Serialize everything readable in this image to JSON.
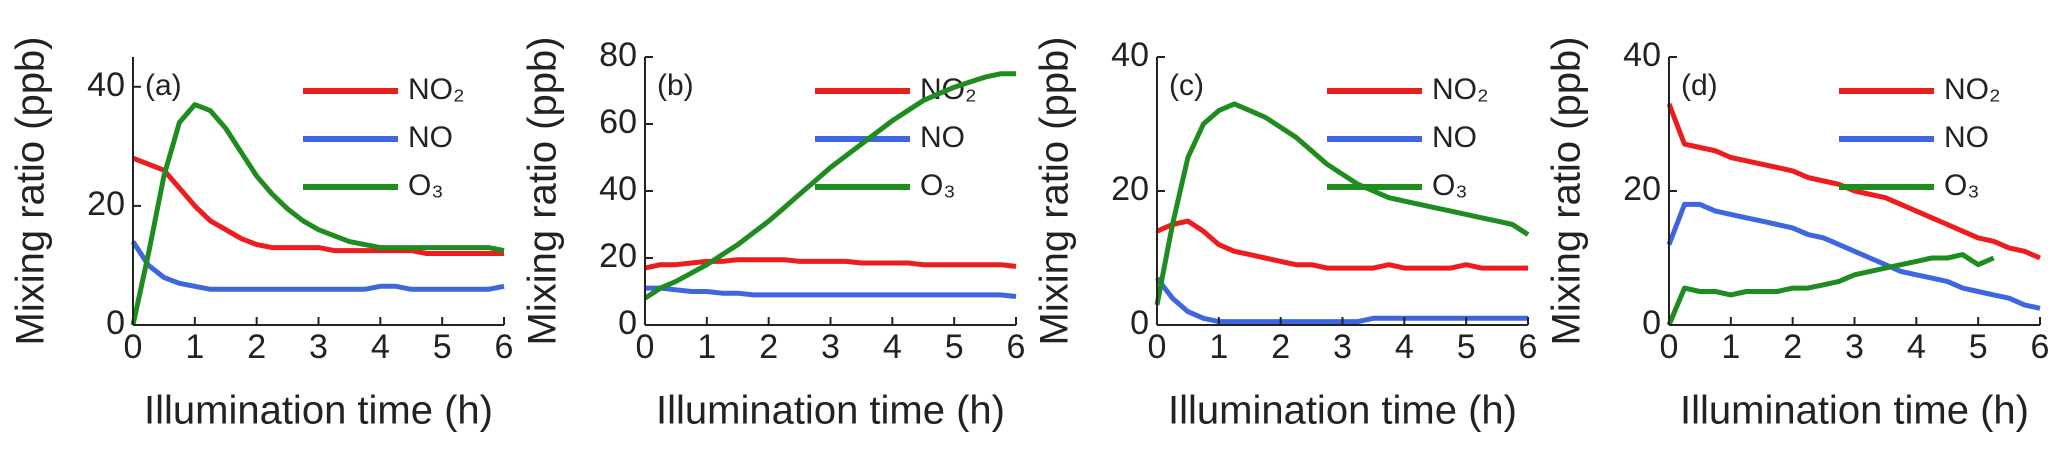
{
  "chart_data": [
    {
      "type": "line",
      "label": "(a)",
      "xlabel": "Illumination time (h)",
      "ylabel": "Mixing ratio (ppb)",
      "x": [
        0,
        0.25,
        0.5,
        0.75,
        1,
        1.25,
        1.5,
        1.75,
        2,
        2.25,
        2.5,
        2.75,
        3,
        3.25,
        3.5,
        3.75,
        4,
        4.25,
        4.5,
        4.75,
        5,
        5.25,
        5.5,
        5.75,
        6
      ],
      "xlim": [
        0,
        6
      ],
      "xticks": [
        0,
        1,
        2,
        3,
        4,
        5,
        6
      ],
      "ylim": [
        0,
        45
      ],
      "yticks": [
        0,
        20,
        40
      ],
      "series": [
        {
          "name": "NO₂",
          "color": "#ee1c1c",
          "values": [
            28,
            27,
            26,
            23,
            20,
            17.5,
            16,
            14.5,
            13.5,
            13,
            13,
            13,
            13,
            12.5,
            12.5,
            12.5,
            12.5,
            12.5,
            12.5,
            12,
            12,
            12,
            12,
            12,
            12
          ]
        },
        {
          "name": "NO",
          "color": "#3d66e0",
          "values": [
            14,
            10,
            8,
            7,
            6.5,
            6,
            6,
            6,
            6,
            6,
            6,
            6,
            6,
            6,
            6,
            6,
            6.5,
            6.5,
            6,
            6,
            6,
            6,
            6,
            6,
            6.5
          ]
        },
        {
          "name": "O₃",
          "color": "#1f8c1f",
          "values": [
            0,
            12,
            25,
            34,
            37,
            36,
            33,
            29,
            25,
            22,
            19.5,
            17.5,
            16,
            15,
            14,
            13.5,
            13,
            13,
            13,
            13,
            13,
            13,
            13,
            13,
            12.5
          ]
        }
      ]
    },
    {
      "type": "line",
      "label": "(b)",
      "xlabel": "Illumination time (h)",
      "ylabel": "Mixing ratio (ppb)",
      "x": [
        0,
        0.25,
        0.5,
        0.75,
        1,
        1.25,
        1.5,
        1.75,
        2,
        2.25,
        2.5,
        2.75,
        3,
        3.25,
        3.5,
        3.75,
        4,
        4.25,
        4.5,
        4.75,
        5,
        5.25,
        5.5,
        5.75,
        6
      ],
      "xlim": [
        0,
        6
      ],
      "xticks": [
        0,
        1,
        2,
        3,
        4,
        5,
        6
      ],
      "ylim": [
        0,
        80
      ],
      "yticks": [
        0,
        20,
        40,
        60,
        80
      ],
      "series": [
        {
          "name": "NO₂",
          "color": "#ee1c1c",
          "values": [
            17,
            18,
            18,
            18.5,
            19,
            19,
            19.5,
            19.5,
            19.5,
            19.5,
            19,
            19,
            19,
            19,
            18.5,
            18.5,
            18.5,
            18.5,
            18,
            18,
            18,
            18,
            18,
            18,
            17.5
          ]
        },
        {
          "name": "NO",
          "color": "#3d66e0",
          "values": [
            11,
            11,
            10.5,
            10,
            10,
            9.5,
            9.5,
            9,
            9,
            9,
            9,
            9,
            9,
            9,
            9,
            9,
            9,
            9,
            9,
            9,
            9,
            9,
            9,
            9,
            8.5
          ]
        },
        {
          "name": "O₃",
          "color": "#1f8c1f",
          "values": [
            8,
            11,
            13,
            15.5,
            18,
            21,
            24,
            27.5,
            31,
            35,
            39,
            43,
            47,
            50.5,
            54,
            57.5,
            61,
            64,
            67,
            69,
            71,
            72.5,
            74,
            75,
            75
          ]
        }
      ]
    },
    {
      "type": "line",
      "label": "(c)",
      "xlabel": "Illumination time (h)",
      "ylabel": "Mixing ratio (ppb)",
      "x": [
        0,
        0.25,
        0.5,
        0.75,
        1,
        1.25,
        1.5,
        1.75,
        2,
        2.25,
        2.5,
        2.75,
        3,
        3.25,
        3.5,
        3.75,
        4,
        4.25,
        4.5,
        4.75,
        5,
        5.25,
        5.5,
        5.75,
        6
      ],
      "xlim": [
        0,
        6
      ],
      "xticks": [
        0,
        1,
        2,
        3,
        4,
        5,
        6
      ],
      "ylim": [
        0,
        40
      ],
      "yticks": [
        0,
        20,
        40
      ],
      "series": [
        {
          "name": "NO₂",
          "color": "#ee1c1c",
          "values": [
            14,
            15,
            15.5,
            14,
            12,
            11,
            10.5,
            10,
            9.5,
            9,
            9,
            8.5,
            8.5,
            8.5,
            8.5,
            9,
            8.5,
            8.5,
            8.5,
            8.5,
            9,
            8.5,
            8.5,
            8.5,
            8.5
          ]
        },
        {
          "name": "NO",
          "color": "#3d66e0",
          "values": [
            7,
            4,
            2,
            1,
            0.5,
            0.5,
            0.5,
            0.5,
            0.5,
            0.5,
            0.5,
            0.5,
            0.5,
            0.5,
            1,
            1,
            1,
            1,
            1,
            1,
            1,
            1,
            1,
            1,
            1
          ]
        },
        {
          "name": "O₃",
          "color": "#1f8c1f",
          "values": [
            3,
            15,
            25,
            30,
            32,
            33,
            32,
            31,
            29.5,
            28,
            26,
            24,
            22.5,
            21,
            20,
            19,
            18.5,
            18,
            17.5,
            17,
            16.5,
            16,
            15.5,
            15,
            13.5
          ]
        }
      ]
    },
    {
      "type": "line",
      "label": "(d)",
      "xlabel": "Illumination time (h)",
      "ylabel": "Mixing ratio (ppb)",
      "x": [
        0,
        0.25,
        0.5,
        0.75,
        1,
        1.25,
        1.5,
        1.75,
        2,
        2.25,
        2.5,
        2.75,
        3,
        3.25,
        3.5,
        3.75,
        4,
        4.25,
        4.5,
        4.75,
        5,
        5.25,
        5.5,
        5.75,
        6
      ],
      "xlim": [
        0,
        6
      ],
      "xticks": [
        0,
        1,
        2,
        3,
        4,
        5,
        6
      ],
      "ylim": [
        0,
        40
      ],
      "yticks": [
        0,
        20,
        40
      ],
      "series": [
        {
          "name": "NO₂",
          "color": "#ee1c1c",
          "values": [
            33,
            27,
            26.5,
            26,
            25,
            24.5,
            24,
            23.5,
            23,
            22,
            21.5,
            21,
            20,
            19.5,
            19,
            18,
            17,
            16,
            15,
            14,
            13,
            12.5,
            11.5,
            11,
            10
          ]
        },
        {
          "name": "NO",
          "color": "#3d66e0",
          "values": [
            12,
            18,
            18,
            17,
            16.5,
            16,
            15.5,
            15,
            14.5,
            13.5,
            13,
            12,
            11,
            10,
            9,
            8,
            7.5,
            7,
            6.5,
            5.5,
            5,
            4.5,
            4,
            3,
            2.5
          ]
        },
        {
          "name": "O₃",
          "color": "#1f8c1f",
          "values": [
            0,
            5.5,
            5,
            5,
            4.5,
            5,
            5,
            5,
            5.5,
            5.5,
            6,
            6.5,
            7.5,
            8,
            8.5,
            9,
            9.5,
            10,
            10,
            10.5,
            9,
            10,
            null,
            null,
            null
          ]
        }
      ]
    }
  ]
}
